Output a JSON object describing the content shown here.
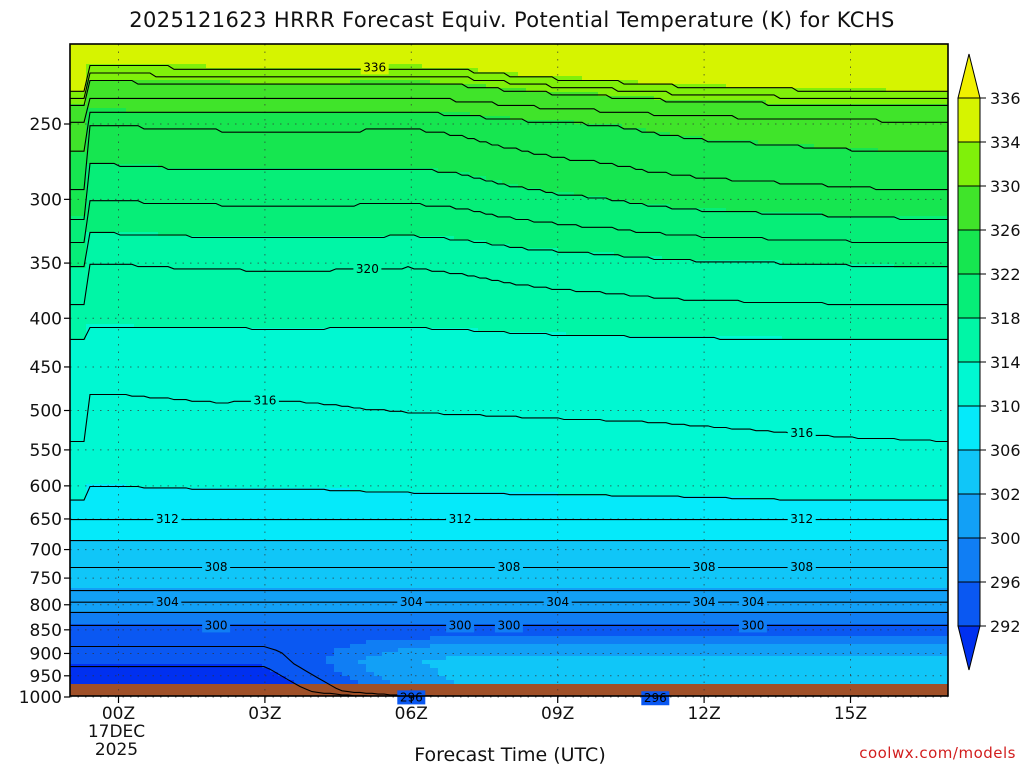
{
  "chart_data": {
    "type": "heatmap",
    "title": "2025121623 HRRR Forecast Equiv. Potential Temperature (K) for KCHS",
    "xlabel": "Forecast Time (UTC)",
    "ylabel": "",
    "x_ticks": [
      {
        "value": 0,
        "label": "00Z",
        "sub": [
          "17DEC",
          "2025"
        ]
      },
      {
        "value": 3,
        "label": "03Z"
      },
      {
        "value": 6,
        "label": "06Z"
      },
      {
        "value": 9,
        "label": "09Z"
      },
      {
        "value": 12,
        "label": "12Z"
      },
      {
        "value": 15,
        "label": "15Z"
      }
    ],
    "xlim": [
      -0.6,
      17
    ],
    "y_ticks": [
      250,
      300,
      350,
      400,
      450,
      500,
      550,
      600,
      650,
      700,
      750,
      800,
      850,
      900,
      950,
      1000
    ],
    "ylim": [
      1020,
      200
    ],
    "yscale": "log",
    "colorbar": {
      "levels": [
        292,
        296,
        300,
        302,
        306,
        310,
        314,
        318,
        322,
        326,
        330,
        334,
        336
      ],
      "colors": [
        "#0030f0",
        "#0a58f2",
        "#107ef4",
        "#12a0f6",
        "#10c6f8",
        "#05eafa",
        "#00f8d2",
        "#00f6a6",
        "#06ee78",
        "#16e650",
        "#40e42a",
        "#80f00a",
        "#d6f400"
      ],
      "extends": "both"
    },
    "contours": [
      {
        "value": 336,
        "label_x": 5.25
      },
      {
        "value": 320,
        "label_x": 5.1
      },
      {
        "value": 316,
        "label_x": 3.0
      },
      {
        "value": 316,
        "label_x": 14.0
      },
      {
        "value": 312,
        "label_x": 1.0
      },
      {
        "value": 312,
        "label_x": 7.0
      },
      {
        "value": 312,
        "label_x": 14.0
      },
      {
        "value": 308,
        "label_x": 2.0
      },
      {
        "value": 308,
        "label_x": 8.0
      },
      {
        "value": 308,
        "label_x": 14.0
      },
      {
        "value": 304,
        "label_x": 1.0
      },
      {
        "value": 304,
        "label_x": 6.0
      },
      {
        "value": 304,
        "label_x": 13.0
      },
      {
        "value": 300,
        "label_x": 2.0
      },
      {
        "value": 304,
        "label_x": 12.0
      },
      {
        "value": 308,
        "label_x": 12.0
      },
      {
        "value": 308,
        "label_x": 8.0
      },
      {
        "value": 304,
        "label_x": 9.0
      },
      {
        "value": 308,
        "label_x": 14.0
      },
      {
        "value": 300,
        "label_x": 8.0
      },
      {
        "value": 296,
        "label_x": 6.0
      },
      {
        "value": 300,
        "label_x": 7.0
      },
      {
        "value": 296,
        "label_x": 11.0
      },
      {
        "value": 300,
        "label_x": 13.0
      }
    ],
    "ground": {
      "color": "#a05028"
    },
    "credit": "coolwx.com/models"
  }
}
